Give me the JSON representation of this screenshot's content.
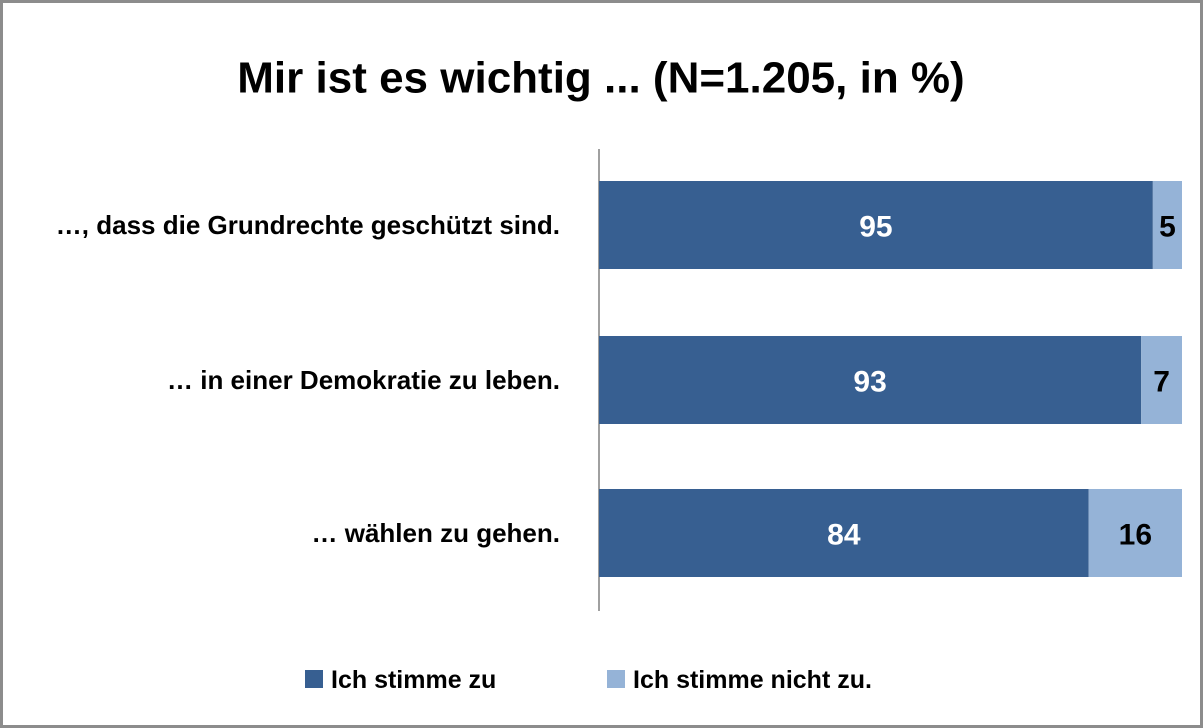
{
  "chart_data": {
    "type": "stacked_barh",
    "title": "Mir ist es wichtig ... (N=1.205, in %)",
    "categories": [
      "…, dass die Grundrechte geschützt sind.",
      "… in einer Demokratie zu leben.",
      "… wählen zu gehen."
    ],
    "series": [
      {
        "name": "Ich stimme zu",
        "color": "#375f91",
        "values": [
          95,
          93,
          84
        ]
      },
      {
        "name": "Ich stimme nicht zu.",
        "color": "#95b3d7",
        "values": [
          5,
          7,
          16
        ]
      }
    ],
    "xlim": [
      0,
      100
    ],
    "legend": "bottom"
  }
}
